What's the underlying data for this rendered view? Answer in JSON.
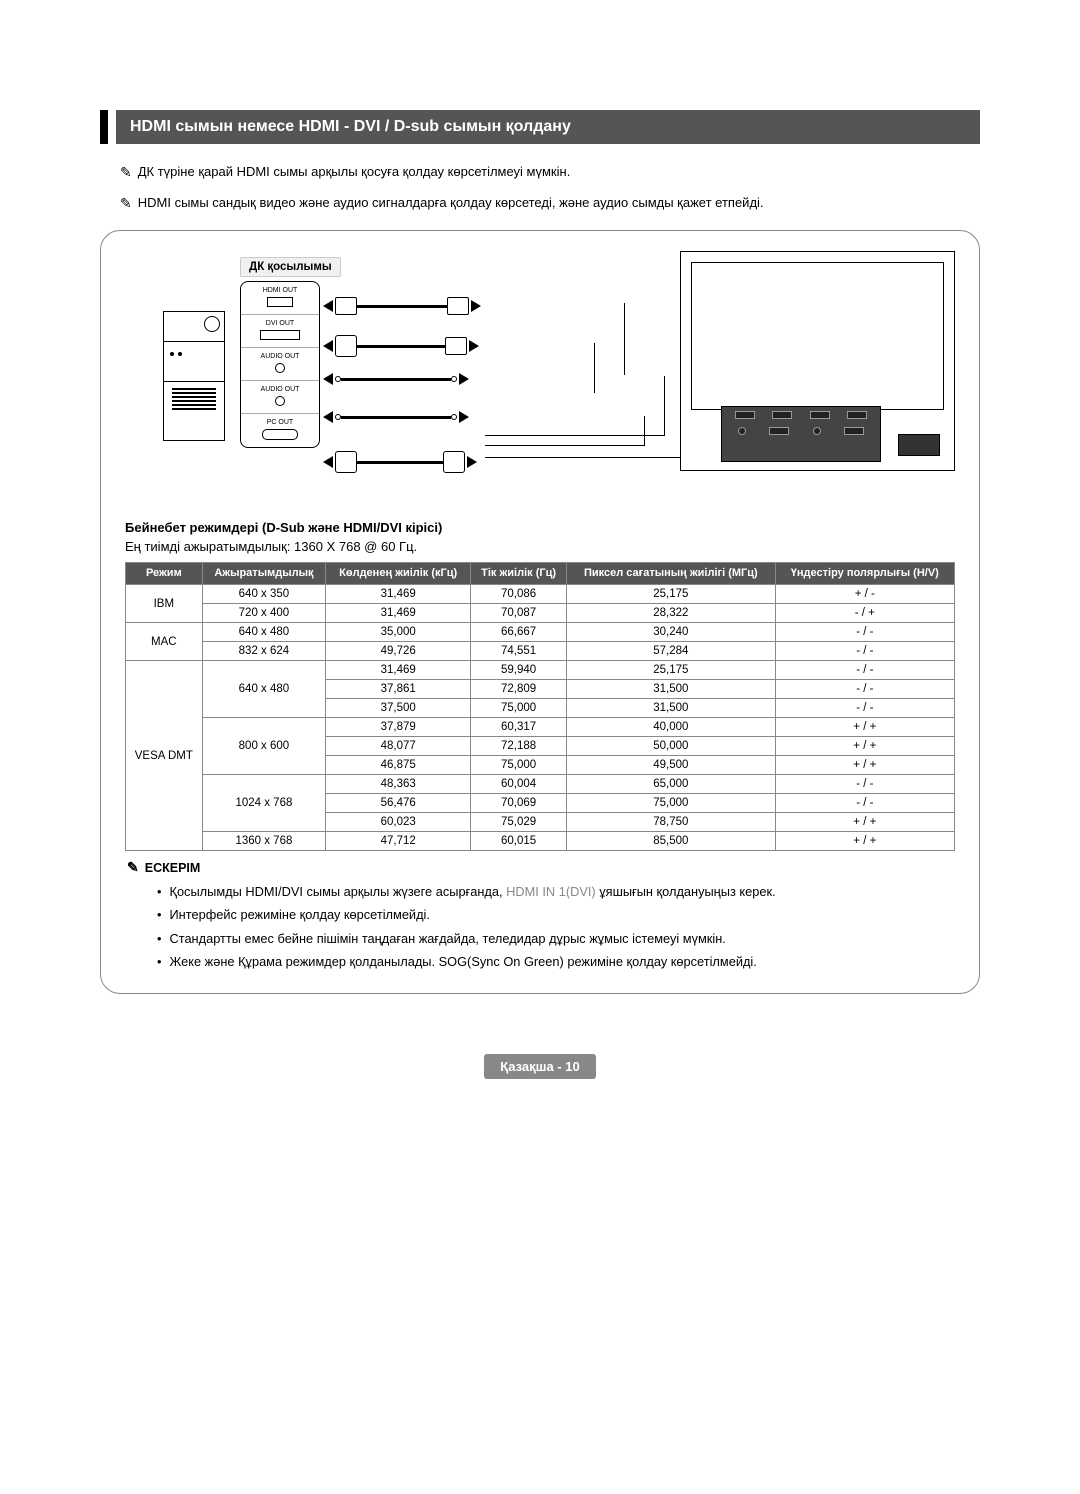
{
  "heading": "HDMI сымын немесе HDMI - DVI / D-sub сымын қолдану",
  "intro_notes": [
    "ДК түріне қарай HDMI сымы арқылы қосуға қолдау көрсетілмеуі мүмкін.",
    "HDMI сымы сандық видео және аудио сигналдарға қолдау көрсетеді, және аудио сымды қажет етпейді."
  ],
  "diagram_label": "ДК қосылымы",
  "ports": {
    "p1": "HDMI OUT",
    "p2": "DVI OUT",
    "p3": "AUDIO OUT",
    "p4": "AUDIO OUT",
    "p5": "PC OUT"
  },
  "modes_heading": "Бейнебет режимдері (D-Sub және HDMI/DVI кірісі)",
  "modes_text": "Ең тиімді ажыратымдылық: 1360 X 768 @ 60 Гц.",
  "table": {
    "headers": {
      "mode": "Режим",
      "res": "Ажыратымдылық",
      "hfreq": "Көлденең жиілік (кГц)",
      "vfreq": "Тік жиілік (Гц)",
      "pclock": "Пиксел сағатының жиілігі (МГц)",
      "sync": "Үндестіру полярлығы (H/V)"
    },
    "groups": [
      {
        "mode": "IBM",
        "rows": [
          {
            "res": "640 x 350",
            "h": "31,469",
            "v": "70,086",
            "p": "25,175",
            "s": "+ / -"
          },
          {
            "res": "720 x 400",
            "h": "31,469",
            "v": "70,087",
            "p": "28,322",
            "s": "- / +"
          }
        ]
      },
      {
        "mode": "MAC",
        "rows": [
          {
            "res": "640 x 480",
            "h": "35,000",
            "v": "66,667",
            "p": "30,240",
            "s": "- / -"
          },
          {
            "res": "832 x 624",
            "h": "49,726",
            "v": "74,551",
            "p": "57,284",
            "s": "- / -"
          }
        ]
      },
      {
        "mode": "VESA DMT",
        "subgroups": [
          {
            "res": "640 x 480",
            "rows": [
              {
                "h": "31,469",
                "v": "59,940",
                "p": "25,175",
                "s": "- / -"
              },
              {
                "h": "37,861",
                "v": "72,809",
                "p": "31,500",
                "s": "- / -"
              },
              {
                "h": "37,500",
                "v": "75,000",
                "p": "31,500",
                "s": "- / -"
              }
            ]
          },
          {
            "res": "800 x 600",
            "rows": [
              {
                "h": "37,879",
                "v": "60,317",
                "p": "40,000",
                "s": "+ / +"
              },
              {
                "h": "48,077",
                "v": "72,188",
                "p": "50,000",
                "s": "+ / +"
              },
              {
                "h": "46,875",
                "v": "75,000",
                "p": "49,500",
                "s": "+ / +"
              }
            ]
          },
          {
            "res": "1024 x 768",
            "rows": [
              {
                "h": "48,363",
                "v": "60,004",
                "p": "65,000",
                "s": "- / -"
              },
              {
                "h": "56,476",
                "v": "70,069",
                "p": "75,000",
                "s": "- / -"
              },
              {
                "h": "60,023",
                "v": "75,029",
                "p": "78,750",
                "s": "+ / +"
              }
            ]
          },
          {
            "res": "1360 x 768",
            "rows": [
              {
                "h": "47,712",
                "v": "60,015",
                "p": "85,500",
                "s": "+ / +"
              }
            ]
          }
        ]
      }
    ]
  },
  "note_title": "ЕСКЕРІМ",
  "notes": [
    {
      "prefix": "Қосылымды HDMI/DVI сымы арқылы жүзеге асырғанда, ",
      "dim": "HDMI IN 1(DVI)",
      "suffix": " ұяшығын қолдануыңыз керек."
    },
    {
      "text": "Интерфейс режиміне қолдау көрсетілмейді."
    },
    {
      "text": "Стандартты емес бейне пішімін таңдаған жағдайда, теледидар дұрыс жұмыс істемеуі мүмкін."
    },
    {
      "text": "Жеке және Құрама режимдер қолданылады. SOG(Sync On Green) режиміне қолдау көрсетілмейді."
    }
  ],
  "footer": {
    "lang": "Қазақша",
    "sep": " - ",
    "page": "10"
  }
}
